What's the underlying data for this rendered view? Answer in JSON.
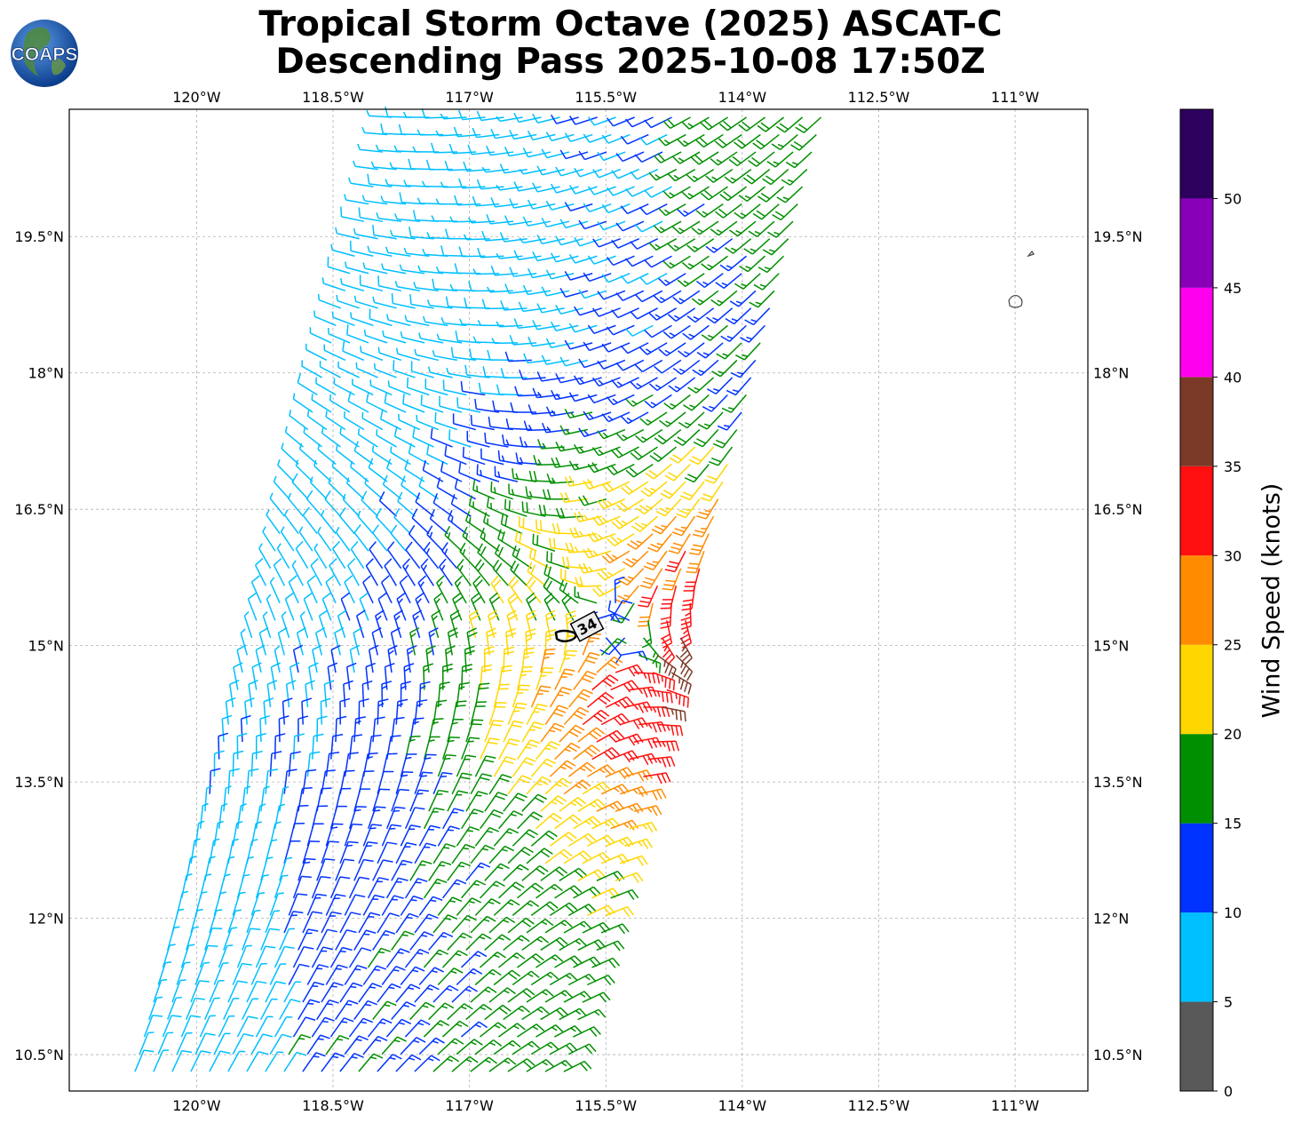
{
  "title_line1": "Tropical Storm Octave (2025) ASCAT-C",
  "title_line2": "Descending Pass 2025-10-08 17:50Z",
  "logo_text": "COAPS",
  "map": {
    "lon_ticks": [
      "120°W",
      "118.5°W",
      "117°W",
      "115.5°W",
      "114°W",
      "112.5°W",
      "111°W"
    ],
    "lat_ticks": [
      "19.5°N",
      "18°N",
      "16.5°N",
      "15°N",
      "13.5°N",
      "12°N",
      "10.5°N"
    ],
    "lon_values": [
      -120,
      -118.5,
      -117,
      -115.5,
      -114,
      -112.5,
      -111
    ],
    "lat_values": [
      19.5,
      18,
      16.5,
      15,
      13.5,
      12,
      10.5
    ],
    "lon_range": [
      -121.4,
      -110.2
    ],
    "lat_range": [
      10.1,
      20.9
    ],
    "gridlines": true,
    "contour_label": "34",
    "storm_center": {
      "lon": -115.4,
      "lat": 15.2
    }
  },
  "colorbar": {
    "title": "Wind Speed (knots)",
    "tick_labels": [
      "0",
      "5",
      "10",
      "15",
      "20",
      "25",
      "30",
      "35",
      "40",
      "45",
      "50"
    ],
    "bins": [
      {
        "min": 0,
        "max": 5,
        "color": "#595959"
      },
      {
        "min": 5,
        "max": 10,
        "color": "#00bfff"
      },
      {
        "min": 10,
        "max": 15,
        "color": "#0033ff"
      },
      {
        "min": 15,
        "max": 20,
        "color": "#008f00"
      },
      {
        "min": 20,
        "max": 25,
        "color": "#ffd700"
      },
      {
        "min": 25,
        "max": 30,
        "color": "#ff8c00"
      },
      {
        "min": 30,
        "max": 35,
        "color": "#ff0f0f"
      },
      {
        "min": 35,
        "max": 40,
        "color": "#7b3a27"
      },
      {
        "min": 40,
        "max": 45,
        "color": "#ff00ee"
      },
      {
        "min": 45,
        "max": 50,
        "color": "#8800b8"
      },
      {
        "min": 50,
        "max": 55,
        "color": "#2d005e"
      }
    ]
  }
}
